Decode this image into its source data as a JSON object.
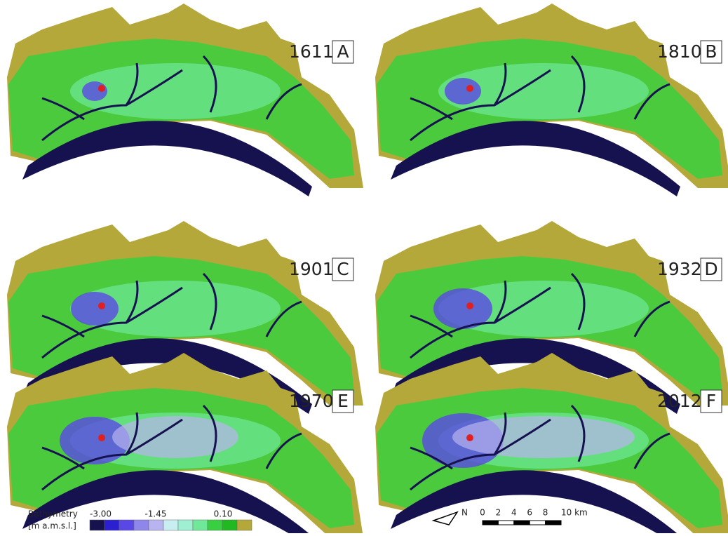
{
  "panels": [
    {
      "year": "1611",
      "letter": "A"
    },
    {
      "year": "1810",
      "letter": "B"
    },
    {
      "year": "1901",
      "letter": "C"
    },
    {
      "year": "1932",
      "letter": "D"
    },
    {
      "year": "1970",
      "letter": "E"
    },
    {
      "year": "2012",
      "letter": "F"
    }
  ],
  "legend": {
    "title": "Bathymetry",
    "unit": "[m a.m.s.l.]",
    "labels": [
      "-3.00",
      "-1.45",
      "0.10"
    ],
    "colors": [
      "#16124f",
      "#2b1fd0",
      "#5a48e6",
      "#8f86ec",
      "#b8b4f0",
      "#c8eef2",
      "#9ff0d2",
      "#6fe89a",
      "#38d040",
      "#22b822",
      "#b5a83a"
    ]
  },
  "north": "N",
  "scale": {
    "ticks": [
      "0",
      "2",
      "4",
      "6",
      "8",
      "10 km"
    ]
  }
}
